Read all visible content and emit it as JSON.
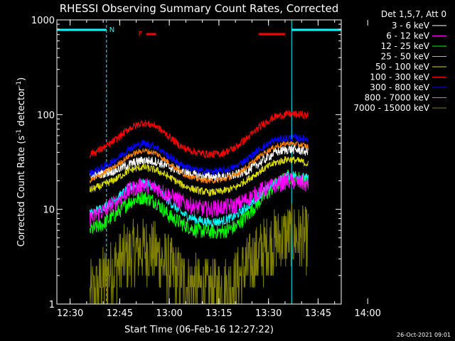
{
  "chart_data": {
    "type": "line",
    "title": "RHESSI Observing Summary Count Rates, Corrected",
    "xlabel": "Start Time (06-Feb-16 12:27:22)",
    "ylabel_prefix": "Corrected Count Rate (s",
    "ylabel_sup1": "-1",
    "ylabel_mid": " detector",
    "ylabel_sup2": "-1",
    "ylabel_suffix": ")",
    "yscale": "log",
    "ylim": [
      1,
      1000
    ],
    "xlim_minutes": [
      -4,
      82
    ],
    "x_tick_minutes": [
      0,
      15,
      30,
      45,
      60,
      75,
      90
    ],
    "x_tick_labels": [
      "12:30",
      "12:45",
      "13:00",
      "13:15",
      "13:30",
      "13:45",
      "14:00"
    ],
    "y_tick_values": [
      1,
      10,
      100,
      1000
    ],
    "y_tick_labels": [
      "1",
      "10",
      "100",
      "1000"
    ],
    "legend_header": "Det 1,5,7, Att 0",
    "legend_position": "outside-right",
    "timestamp": "26-Oct-2021 09:01",
    "annotations": {
      "night_label": "N",
      "flare_label": "F",
      "night_bars_minutes": [
        [
          -4,
          11
        ],
        [
          67,
          82
        ]
      ],
      "night_lines_minutes": [
        -4,
        11,
        67,
        82
      ],
      "flare_bars_minutes": [
        [
          23,
          26
        ],
        [
          57,
          65
        ]
      ],
      "color_night": "#00ffff",
      "color_flare": "#ff0000"
    },
    "data_time_minutes": [
      6,
      72
    ],
    "series": [
      {
        "name": "3 - 6 keV",
        "color": "#ffffff",
        "key": [
          [
            6,
            22
          ],
          [
            10,
            24
          ],
          [
            14,
            26
          ],
          [
            18,
            30
          ],
          [
            22,
            33
          ],
          [
            26,
            32
          ],
          [
            30,
            28
          ],
          [
            34,
            25
          ],
          [
            38,
            23
          ],
          [
            42,
            22
          ],
          [
            46,
            22
          ],
          [
            50,
            23
          ],
          [
            54,
            26
          ],
          [
            58,
            32
          ],
          [
            62,
            40
          ],
          [
            66,
            43
          ],
          [
            70,
            42
          ],
          [
            72,
            40
          ]
        ],
        "noise": 0.05
      },
      {
        "name": "6 - 12 keV",
        "color": "#ff00ff",
        "key": [
          [
            6,
            8
          ],
          [
            10,
            9.5
          ],
          [
            14,
            12
          ],
          [
            18,
            16
          ],
          [
            22,
            18
          ],
          [
            26,
            17
          ],
          [
            30,
            14
          ],
          [
            34,
            12
          ],
          [
            38,
            10.5
          ],
          [
            42,
            10
          ],
          [
            46,
            10.5
          ],
          [
            50,
            11
          ],
          [
            54,
            13
          ],
          [
            58,
            16
          ],
          [
            62,
            18
          ],
          [
            66,
            20
          ],
          [
            70,
            19
          ],
          [
            72,
            18
          ]
        ],
        "noise": 0.09
      },
      {
        "name": "12 - 25 keV",
        "color": "#00ff00",
        "key": [
          [
            6,
            6
          ],
          [
            10,
            7
          ],
          [
            14,
            9
          ],
          [
            18,
            12
          ],
          [
            22,
            13.5
          ],
          [
            26,
            12
          ],
          [
            30,
            8.5
          ],
          [
            34,
            7
          ],
          [
            38,
            6
          ],
          [
            42,
            5.8
          ],
          [
            46,
            5.8
          ],
          [
            50,
            6.5
          ],
          [
            54,
            9
          ],
          [
            58,
            13
          ],
          [
            62,
            18
          ],
          [
            66,
            22
          ],
          [
            70,
            21
          ],
          [
            72,
            20
          ]
        ],
        "noise": 0.08
      },
      {
        "name": "25 - 50 keV",
        "color": "#00ffff",
        "key": [
          [
            6,
            9
          ],
          [
            10,
            10.5
          ],
          [
            14,
            13
          ],
          [
            18,
            17
          ],
          [
            22,
            19
          ],
          [
            26,
            17
          ],
          [
            30,
            12
          ],
          [
            34,
            9
          ],
          [
            38,
            7.8
          ],
          [
            42,
            7.3
          ],
          [
            46,
            7.5
          ],
          [
            50,
            8.5
          ],
          [
            54,
            11
          ],
          [
            58,
            15
          ],
          [
            62,
            19
          ],
          [
            66,
            23
          ],
          [
            70,
            22
          ],
          [
            72,
            21
          ]
        ],
        "noise": 0.05
      },
      {
        "name": "50 - 100 keV",
        "color": "#dddd00",
        "key": [
          [
            6,
            16
          ],
          [
            10,
            18
          ],
          [
            14,
            21
          ],
          [
            18,
            26
          ],
          [
            22,
            28
          ],
          [
            26,
            26
          ],
          [
            30,
            22
          ],
          [
            34,
            18
          ],
          [
            38,
            16
          ],
          [
            42,
            15
          ],
          [
            46,
            15.5
          ],
          [
            50,
            17
          ],
          [
            54,
            21
          ],
          [
            58,
            26
          ],
          [
            62,
            31
          ],
          [
            66,
            34
          ],
          [
            70,
            32
          ],
          [
            72,
            30
          ]
        ],
        "noise": 0.04
      },
      {
        "name": "100 - 300 keV",
        "color": "#ff0000",
        "key": [
          [
            6,
            38
          ],
          [
            10,
            44
          ],
          [
            14,
            55
          ],
          [
            18,
            72
          ],
          [
            22,
            82
          ],
          [
            26,
            76
          ],
          [
            30,
            58
          ],
          [
            34,
            45
          ],
          [
            38,
            40
          ],
          [
            42,
            38
          ],
          [
            46,
            39
          ],
          [
            50,
            45
          ],
          [
            54,
            58
          ],
          [
            58,
            78
          ],
          [
            62,
            95
          ],
          [
            66,
            102
          ],
          [
            70,
            100
          ],
          [
            72,
            97
          ]
        ],
        "noise": 0.04
      },
      {
        "name": "300 - 800 keV",
        "color": "#0000ff",
        "key": [
          [
            6,
            24
          ],
          [
            10,
            28
          ],
          [
            14,
            34
          ],
          [
            18,
            44
          ],
          [
            22,
            50
          ],
          [
            26,
            46
          ],
          [
            30,
            36
          ],
          [
            34,
            29
          ],
          [
            38,
            26
          ],
          [
            42,
            25
          ],
          [
            46,
            25.5
          ],
          [
            50,
            28
          ],
          [
            54,
            35
          ],
          [
            58,
            45
          ],
          [
            62,
            54
          ],
          [
            66,
            57
          ],
          [
            70,
            56
          ],
          [
            72,
            55
          ]
        ],
        "noise": 0.04
      },
      {
        "name": "800 - 7000 keV",
        "color": "#ff8000",
        "key": [
          [
            6,
            20
          ],
          [
            10,
            24
          ],
          [
            14,
            29
          ],
          [
            18,
            37
          ],
          [
            22,
            42
          ],
          [
            26,
            39
          ],
          [
            30,
            31
          ],
          [
            34,
            24
          ],
          [
            38,
            21
          ],
          [
            42,
            20
          ],
          [
            46,
            20.5
          ],
          [
            50,
            23
          ],
          [
            54,
            29
          ],
          [
            58,
            38
          ],
          [
            62,
            46
          ],
          [
            66,
            50
          ],
          [
            70,
            48
          ],
          [
            72,
            46
          ]
        ],
        "noise": 0.03
      },
      {
        "name": "7000 - 15000 keV",
        "color": "#808000",
        "key": [
          [
            6,
            1.2
          ],
          [
            10,
            1.8
          ],
          [
            14,
            2.6
          ],
          [
            18,
            3.4
          ],
          [
            22,
            3.8
          ],
          [
            26,
            3.4
          ],
          [
            30,
            2.4
          ],
          [
            34,
            1.8
          ],
          [
            38,
            1.5
          ],
          [
            42,
            1.4
          ],
          [
            46,
            1.4
          ],
          [
            50,
            1.7
          ],
          [
            54,
            2.6
          ],
          [
            58,
            3.6
          ],
          [
            62,
            4.6
          ],
          [
            66,
            5.3
          ],
          [
            70,
            5
          ],
          [
            72,
            4.8
          ]
        ],
        "noise": 0.35
      }
    ]
  }
}
